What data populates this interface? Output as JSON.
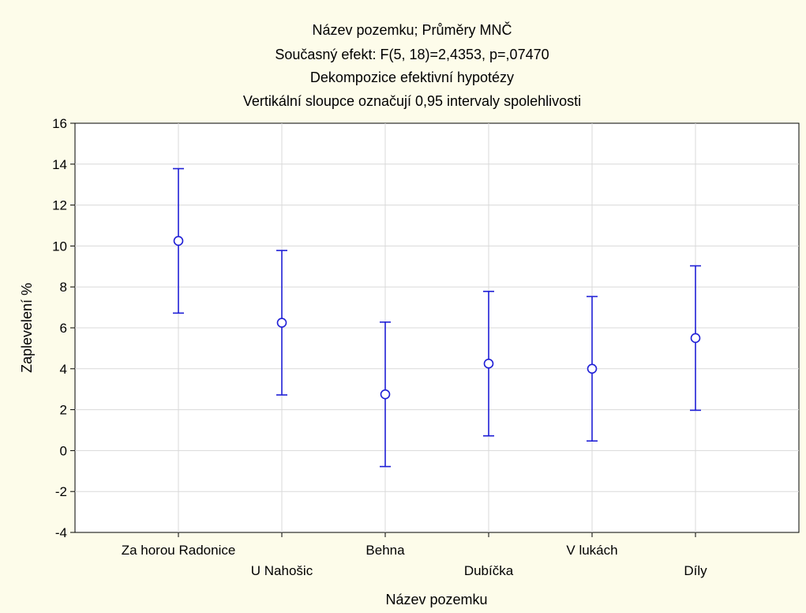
{
  "chart_data": {
    "type": "errorbar",
    "title_lines": [
      "Název pozemku; Průměry MNČ",
      "Současný efekt: F(5, 18)=2,4353, p=,07470",
      "Dekompozice efektivní hypotézy",
      "Vertikální sloupce označují 0,95 intervaly spolehlivosti"
    ],
    "xlabel": "Název pozemku",
    "ylabel": "Zaplevelení %",
    "categories": [
      "Za horou Radonice",
      "U Nahošic",
      "Behna",
      "Dubíčka",
      "V lukách",
      "Díly"
    ],
    "means": [
      10.25,
      6.25,
      2.75,
      4.25,
      4.0,
      5.5
    ],
    "lower": [
      6.72,
      2.72,
      -0.78,
      0.72,
      0.47,
      1.97
    ],
    "upper": [
      13.78,
      9.78,
      6.28,
      7.78,
      7.53,
      9.03
    ],
    "ylim": [
      -4,
      16
    ],
    "yticks": [
      "-4",
      "-2",
      "0",
      "2",
      "4",
      "6",
      "8",
      "10",
      "12",
      "14",
      "16"
    ],
    "grid": true,
    "color": "#1f1fd6"
  }
}
